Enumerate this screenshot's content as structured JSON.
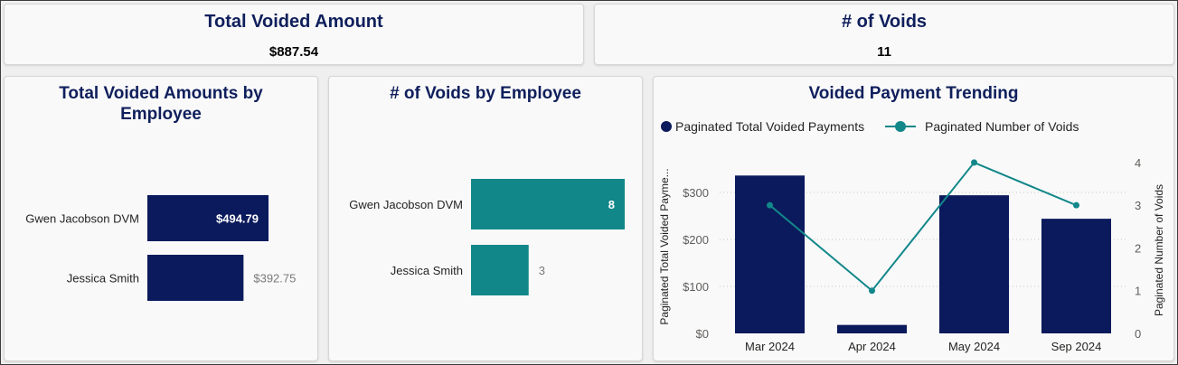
{
  "kpis": {
    "total_voided": {
      "title": "Total Voided Amount",
      "value": "$887.54"
    },
    "num_voids": {
      "title": "# of Voids",
      "value": "11"
    }
  },
  "colors": {
    "navy": "#0b1a5c",
    "teal": "#12878a",
    "title": "#0f1f5c"
  },
  "chart_data": [
    {
      "type": "bar",
      "orientation": "horizontal",
      "title": "Total Voided Amounts by Employee",
      "categories": [
        "Gwen Jacobson DVM",
        "Jessica Smith"
      ],
      "values": [
        494.79,
        392.75
      ],
      "labels": [
        "$494.79",
        "$392.75"
      ],
      "xlim": [
        0,
        494.79
      ]
    },
    {
      "type": "bar",
      "orientation": "horizontal",
      "title": "# of Voids by Employee",
      "categories": [
        "Gwen Jacobson DVM",
        "Jessica Smith"
      ],
      "values": [
        8,
        3
      ],
      "labels": [
        "8",
        "3"
      ],
      "xlim": [
        0,
        8
      ]
    },
    {
      "type": "bar+line",
      "title": "Voided Payment Trending",
      "categories": [
        "Mar 2024",
        "Apr 2024",
        "May 2024",
        "Sep 2024"
      ],
      "series": [
        {
          "name": "Paginated Total Voided Payments",
          "type": "bar",
          "values": [
            336,
            18,
            294,
            244
          ]
        },
        {
          "name": "Paginated Number of Voids",
          "type": "line",
          "values": [
            3,
            1,
            4,
            3
          ]
        }
      ],
      "ylabel_left": "Paginated Total Voided Payme...",
      "ylabel_right": "Paginated Number of Voids",
      "yticks_left": [
        "$0",
        "$100",
        "$200",
        "$300"
      ],
      "yticks_right": [
        "0",
        "1",
        "2",
        "3",
        "4"
      ],
      "ylim_left": [
        0,
        400
      ],
      "ylim_right": [
        0,
        4.4
      ]
    }
  ]
}
